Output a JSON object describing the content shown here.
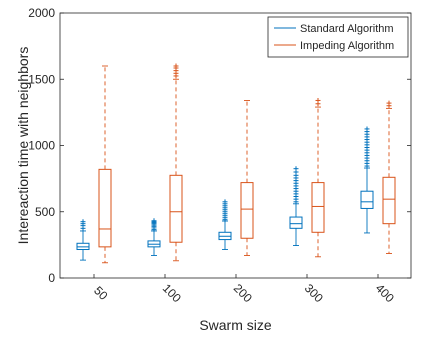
{
  "chart_data": {
    "type": "box",
    "title": "",
    "xlabel": "Swarm size",
    "ylabel": "Intereaction time with neighbors",
    "categories": [
      "50",
      "100",
      "200",
      "300",
      "400"
    ],
    "ylim": [
      0,
      2000
    ],
    "yticks": [
      0,
      500,
      1000,
      1500,
      2000
    ],
    "grid": false,
    "legend_position": "top-right",
    "series": [
      {
        "name": "Standard Algorithm",
        "color": "#0072BD",
        "style": "solid",
        "boxes": [
          {
            "whisker_low": 135,
            "q1": 215,
            "median": 235,
            "q3": 262,
            "whisker_high": 355,
            "outliers": [
              375,
              395,
              410,
              425
            ]
          },
          {
            "whisker_low": 170,
            "q1": 235,
            "median": 255,
            "q3": 280,
            "whisker_high": 355,
            "outliers": [
              365,
              378,
              390,
              400,
              410,
              418,
              425,
              432
            ]
          },
          {
            "whisker_low": 215,
            "q1": 290,
            "median": 315,
            "q3": 345,
            "whisker_high": 430,
            "outliers": [
              440,
              455,
              470,
              485,
              500,
              515,
              530,
              545,
              560,
              575
            ]
          },
          {
            "whisker_low": 245,
            "q1": 375,
            "median": 410,
            "q3": 460,
            "whisker_high": 560,
            "outliers": [
              575,
              595,
              615,
              635,
              655,
              675,
              695,
              715,
              735,
              755,
              775,
              800,
              825
            ]
          },
          {
            "whisker_low": 340,
            "q1": 525,
            "median": 575,
            "q3": 655,
            "whisker_high": 830,
            "outliers": [
              845,
              865,
              885,
              905,
              925,
              945,
              965,
              985,
              1005,
              1025,
              1045,
              1065,
              1085,
              1105,
              1125
            ]
          }
        ]
      },
      {
        "name": "Impeding Algorithm",
        "color": "#D95319",
        "style": "dashed",
        "boxes": [
          {
            "whisker_low": 115,
            "q1": 235,
            "median": 370,
            "q3": 820,
            "whisker_high": 1600,
            "outliers": []
          },
          {
            "whisker_low": 130,
            "q1": 270,
            "median": 500,
            "q3": 775,
            "whisker_high": 1500,
            "outliers": [
              1525,
              1545,
              1565,
              1585,
              1600
            ]
          },
          {
            "whisker_low": 170,
            "q1": 300,
            "median": 520,
            "q3": 720,
            "whisker_high": 1340,
            "outliers": []
          },
          {
            "whisker_low": 160,
            "q1": 345,
            "median": 540,
            "q3": 720,
            "whisker_high": 1290,
            "outliers": [
              1315,
              1340
            ]
          },
          {
            "whisker_low": 185,
            "q1": 410,
            "median": 595,
            "q3": 760,
            "whisker_high": 1280,
            "outliers": [
              1300,
              1320
            ]
          }
        ]
      }
    ]
  }
}
